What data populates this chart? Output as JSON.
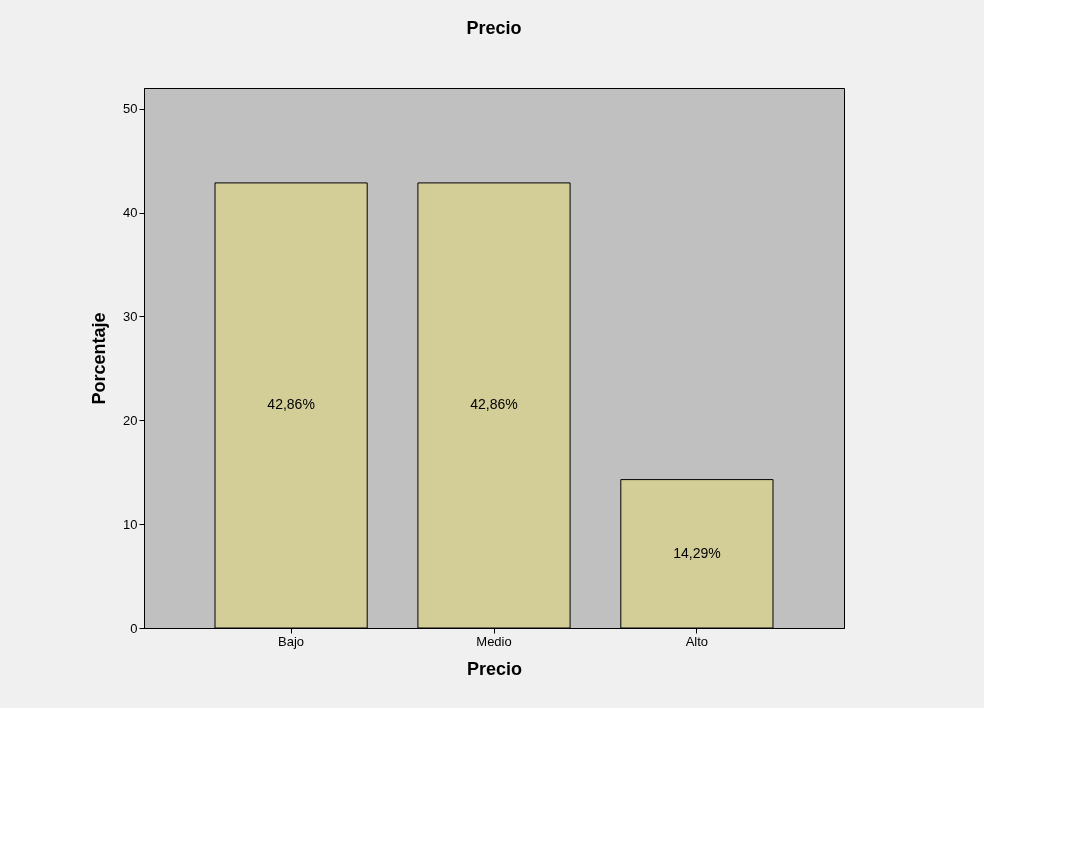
{
  "chart_data": {
    "type": "bar",
    "title": "Precio",
    "xlabel": "Precio",
    "ylabel": "Porcentaje",
    "categories": [
      "Bajo",
      "Medio",
      "Alto"
    ],
    "values": [
      42.86,
      42.86,
      14.29
    ],
    "value_labels": [
      "42,86%",
      "42,86%",
      "14,29%"
    ],
    "color": "#d3cd98",
    "ylim": [
      0,
      52
    ],
    "yticks": [
      0,
      10,
      20,
      30,
      40,
      50
    ],
    "grid": false
  }
}
